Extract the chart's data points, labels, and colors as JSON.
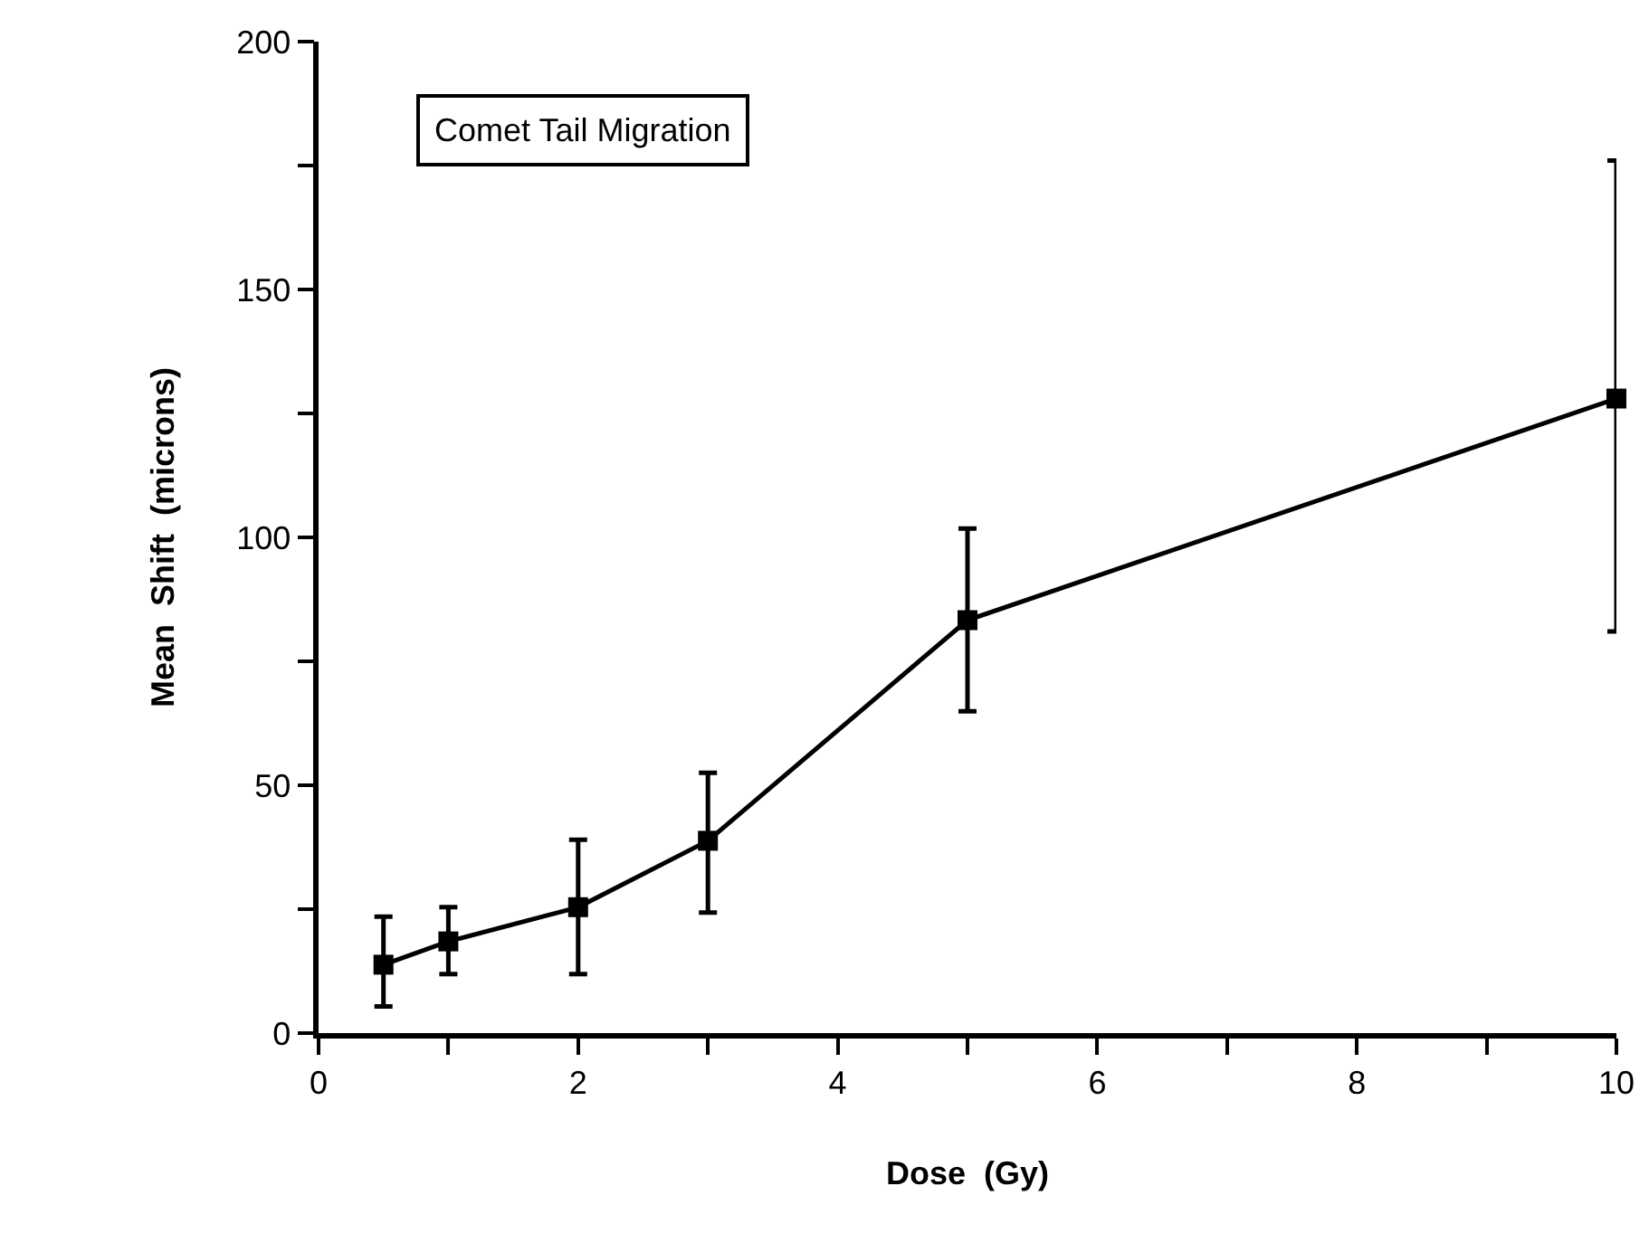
{
  "chart_data": {
    "type": "line",
    "xlabel": "Dose  (Gy)",
    "ylabel": "Mean  Shift  (microns)",
    "annotations": [
      "Comet Tail Migration"
    ],
    "x": [
      0.5,
      1,
      2,
      3,
      5,
      10
    ],
    "series": [
      {
        "color": "#000000",
        "values": [
          13.8,
          18.5,
          25.4,
          38.8,
          83.3,
          128
        ],
        "errors": [
          [
            5.4,
            23.5
          ],
          [
            11.9,
            25.4
          ],
          [
            11.9,
            39
          ],
          [
            24.3,
            52.5
          ],
          [
            64.9,
            101.8
          ],
          [
            81,
            176
          ]
        ]
      }
    ],
    "marker": "square",
    "line_style": "solid",
    "grid": false,
    "xlim": [
      0,
      10
    ],
    "ylim": [
      0,
      200
    ],
    "xticks": [
      0,
      {
        "value": 1,
        "label": null
      },
      2,
      {
        "value": 3,
        "label": null
      },
      4,
      {
        "value": 5,
        "label": null
      },
      6,
      {
        "value": 7,
        "label": null
      },
      8,
      {
        "value": 9,
        "label": null
      },
      10
    ],
    "yticks": [
      0,
      {
        "value": 25,
        "label": null
      },
      50,
      {
        "value": 75,
        "label": null
      },
      100,
      {
        "value": 125,
        "label": null
      },
      150,
      {
        "value": 175,
        "label": null
      },
      200
    ]
  }
}
